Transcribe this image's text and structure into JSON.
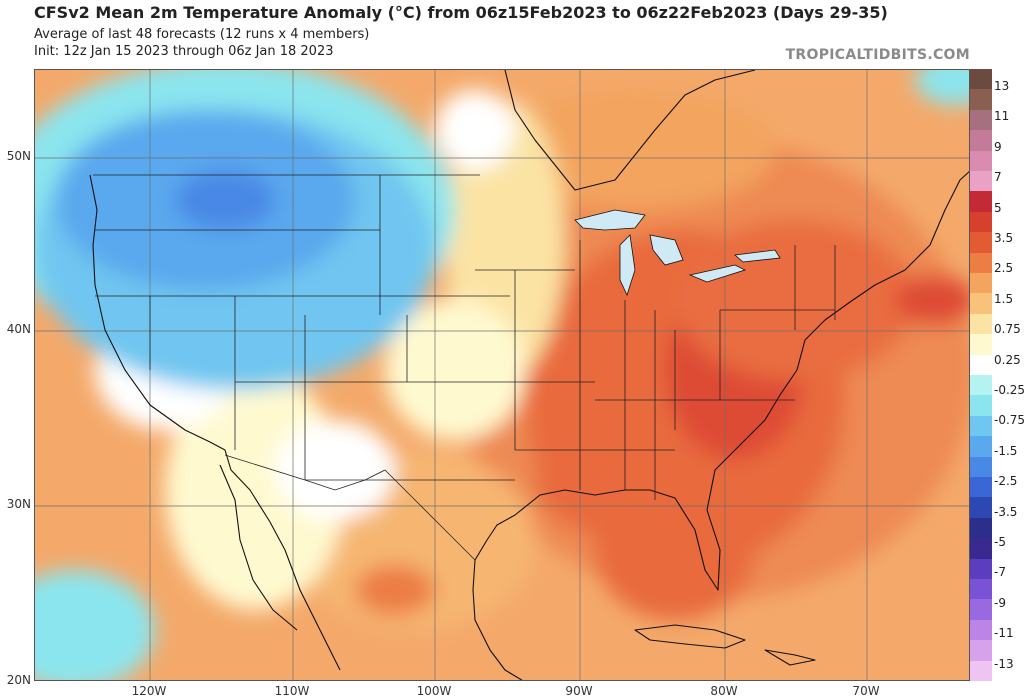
{
  "header": {
    "title": "CFSv2 Mean 2m Temperature Anomaly (°C) from 06z15Feb2023 to 06z22Feb2023 (Days 29-35)",
    "subtitle": "Average of last 48 forecasts (12 runs x 4 members)",
    "init": "Init: 12z Jan 15 2023 through 06z Jan 18 2023"
  },
  "brand": "TROPICALTIDBITS.COM",
  "axes": {
    "lat_labels": [
      "50N",
      "40N",
      "30N",
      "20N"
    ],
    "lon_labels": [
      "120W",
      "110W",
      "100W",
      "90W",
      "80W",
      "70W"
    ]
  },
  "colorbar": {
    "labels": [
      "13",
      "11",
      "9",
      "7",
      "5",
      "3.5",
      "2.5",
      "1.5",
      "0.75",
      "0.25",
      "-0.25",
      "-0.75",
      "-1.5",
      "-2.5",
      "-3.5",
      "-5",
      "-7",
      "-9",
      "-11",
      "-13"
    ],
    "colors": [
      "#6b4a3f",
      "#8a5f52",
      "#a6707f",
      "#c47b98",
      "#d98bb0",
      "#e9a2c6",
      "#c42a35",
      "#d8402e",
      "#e35b33",
      "#ec7d45",
      "#f3a45e",
      "#f8c27a",
      "#fbe3a4",
      "#fff9d0",
      "#ffffff",
      "#b5f3f2",
      "#8be5ee",
      "#6fc6f0",
      "#5aa8ee",
      "#4a88e6",
      "#3a66d6",
      "#2d47b3",
      "#2b2e8a",
      "#3a2a8f",
      "#5b3ec0",
      "#7a52d6",
      "#9a68e0",
      "#bb84e6",
      "#d6a2ec",
      "#f0c4f2"
    ]
  },
  "map": {
    "features": [
      "anomaly-shading",
      "coastlines",
      "country-borders",
      "state-borders",
      "lakes",
      "graticule"
    ]
  }
}
